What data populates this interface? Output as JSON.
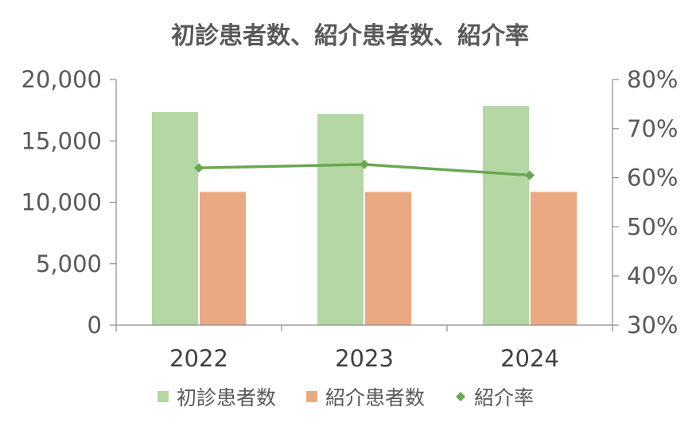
{
  "chart_data": {
    "type": "bar",
    "title": "初診患者数、紹介患者数、紹介率",
    "categories": [
      "2022",
      "2023",
      "2024"
    ],
    "series": [
      {
        "name": "初診患者数",
        "type": "bar",
        "axis": "left",
        "color": "#b5d7a4",
        "values": [
          17350,
          17200,
          17850
        ]
      },
      {
        "name": "紹介患者数",
        "type": "bar",
        "axis": "left",
        "color": "#eaa982",
        "values": [
          10850,
          10850,
          10850
        ]
      },
      {
        "name": "紹介率",
        "type": "line",
        "axis": "right",
        "color": "#6aa84f",
        "marker": "diamond",
        "values": [
          0.62,
          0.627,
          0.605
        ]
      }
    ],
    "y_left": {
      "min": 0,
      "max": 20000,
      "ticks": [
        0,
        5000,
        10000,
        15000,
        20000
      ],
      "tick_labels": [
        "0",
        "5,000",
        "10,000",
        "15,000",
        "20,000"
      ]
    },
    "y_right": {
      "min": 0.3,
      "max": 0.8,
      "ticks": [
        0.3,
        0.4,
        0.5,
        0.6,
        0.7,
        0.8
      ],
      "tick_labels": [
        "30%",
        "40%",
        "50%",
        "60%",
        "70%",
        "80%"
      ]
    },
    "grid": false,
    "legend_position": "bottom"
  }
}
